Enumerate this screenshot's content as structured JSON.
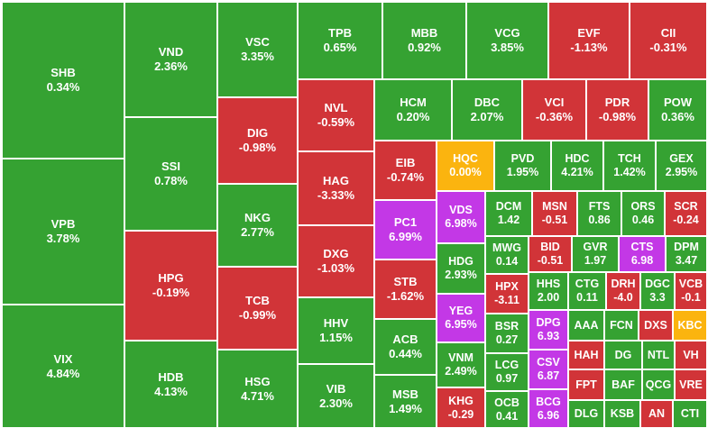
{
  "colors": {
    "up": "#35a232",
    "down": "#d13438",
    "ref": "#fbb40f",
    "ceiling": "#c338e6"
  },
  "tiles": {
    "SHB": {
      "symbol": "SHB",
      "change": "0.34%",
      "status": "up"
    },
    "VPB": {
      "symbol": "VPB",
      "change": "3.78%",
      "status": "up"
    },
    "VIX": {
      "symbol": "VIX",
      "change": "4.84%",
      "status": "up"
    },
    "VND": {
      "symbol": "VND",
      "change": "2.36%",
      "status": "up"
    },
    "SSI": {
      "symbol": "SSI",
      "change": "0.78%",
      "status": "up"
    },
    "HPG": {
      "symbol": "HPG",
      "change": "-0.19%",
      "status": "down"
    },
    "HDB": {
      "symbol": "HDB",
      "change": "4.13%",
      "status": "up"
    },
    "VSC": {
      "symbol": "VSC",
      "change": "3.35%",
      "status": "up"
    },
    "DIG": {
      "symbol": "DIG",
      "change": "-0.98%",
      "status": "down"
    },
    "NKG": {
      "symbol": "NKG",
      "change": "2.77%",
      "status": "up"
    },
    "TCB": {
      "symbol": "TCB",
      "change": "-0.99%",
      "status": "down"
    },
    "HSG": {
      "symbol": "HSG",
      "change": "4.71%",
      "status": "up"
    },
    "TPB": {
      "symbol": "TPB",
      "change": "0.65%",
      "status": "up"
    },
    "MBB": {
      "symbol": "MBB",
      "change": "0.92%",
      "status": "up"
    },
    "VCG": {
      "symbol": "VCG",
      "change": "3.85%",
      "status": "up"
    },
    "EVF": {
      "symbol": "EVF",
      "change": "-1.13%",
      "status": "down"
    },
    "CII": {
      "symbol": "CII",
      "change": "-0.31%",
      "status": "down"
    },
    "NVL": {
      "symbol": "NVL",
      "change": "-0.59%",
      "status": "down"
    },
    "HAG": {
      "symbol": "HAG",
      "change": "-3.33%",
      "status": "down"
    },
    "DXG": {
      "symbol": "DXG",
      "change": "-1.03%",
      "status": "down"
    },
    "HHV": {
      "symbol": "HHV",
      "change": "1.15%",
      "status": "up"
    },
    "VIB": {
      "symbol": "VIB",
      "change": "2.30%",
      "status": "up"
    },
    "HCM": {
      "symbol": "HCM",
      "change": "0.20%",
      "status": "up"
    },
    "DBC": {
      "symbol": "DBC",
      "change": "2.07%",
      "status": "up"
    },
    "VCI": {
      "symbol": "VCI",
      "change": "-0.36%",
      "status": "down"
    },
    "PDR": {
      "symbol": "PDR",
      "change": "-0.98%",
      "status": "down"
    },
    "POW": {
      "symbol": "POW",
      "change": "0.36%",
      "status": "up"
    },
    "EIB": {
      "symbol": "EIB",
      "change": "-0.74%",
      "status": "down"
    },
    "HQC": {
      "symbol": "HQC",
      "change": "0.00%",
      "status": "ref"
    },
    "PVD": {
      "symbol": "PVD",
      "change": "1.95%",
      "status": "up"
    },
    "HDC": {
      "symbol": "HDC",
      "change": "4.21%",
      "status": "up"
    },
    "TCH": {
      "symbol": "TCH",
      "change": "1.42%",
      "status": "up"
    },
    "GEX": {
      "symbol": "GEX",
      "change": "2.95%",
      "status": "up"
    },
    "PC1": {
      "symbol": "PC1",
      "change": "6.99%",
      "status": "ceiling"
    },
    "VDS": {
      "symbol": "VDS",
      "change": "6.98%",
      "status": "ceiling"
    },
    "DCM": {
      "symbol": "DCM",
      "change": "1.42",
      "status": "up"
    },
    "MSN": {
      "symbol": "MSN",
      "change": "-0.51",
      "status": "down"
    },
    "FTS": {
      "symbol": "FTS",
      "change": "0.86",
      "status": "up"
    },
    "ORS": {
      "symbol": "ORS",
      "change": "0.46",
      "status": "up"
    },
    "SCR": {
      "symbol": "SCR",
      "change": "-0.24",
      "status": "down"
    },
    "STB": {
      "symbol": "STB",
      "change": "-1.62%",
      "status": "down"
    },
    "HDG": {
      "symbol": "HDG",
      "change": "2.93%",
      "status": "up"
    },
    "MWG": {
      "symbol": "MWG",
      "change": "0.14",
      "status": "up"
    },
    "BID": {
      "symbol": "BID",
      "change": "-0.51",
      "status": "down"
    },
    "GVR": {
      "symbol": "GVR",
      "change": "1.97",
      "status": "up"
    },
    "CTS": {
      "symbol": "CTS",
      "change": "6.98",
      "status": "ceiling"
    },
    "DPM": {
      "symbol": "DPM",
      "change": "3.47",
      "status": "up"
    },
    "HPX": {
      "symbol": "HPX",
      "change": "-3.11",
      "status": "down"
    },
    "HHS": {
      "symbol": "HHS",
      "change": "2.00",
      "status": "up"
    },
    "CTG": {
      "symbol": "CTG",
      "change": "0.11",
      "status": "up"
    },
    "DRH": {
      "symbol": "DRH",
      "change": "-4.0",
      "status": "down"
    },
    "DGC": {
      "symbol": "DGC",
      "change": "3.3",
      "status": "up"
    },
    "VCB": {
      "symbol": "VCB",
      "change": "-0.1",
      "status": "down"
    },
    "ACB": {
      "symbol": "ACB",
      "change": "0.44%",
      "status": "up"
    },
    "YEG": {
      "symbol": "YEG",
      "change": "6.95%",
      "status": "ceiling"
    },
    "BSR": {
      "symbol": "BSR",
      "change": "0.27",
      "status": "up"
    },
    "DPG": {
      "symbol": "DPG",
      "change": "6.93",
      "status": "ceiling"
    },
    "AAA": {
      "symbol": "AAA",
      "change": "",
      "status": "up"
    },
    "FCN": {
      "symbol": "FCN",
      "change": "",
      "status": "up"
    },
    "DXS": {
      "symbol": "DXS",
      "change": "",
      "status": "down"
    },
    "KBC": {
      "symbol": "KBC",
      "change": "",
      "status": "ref"
    },
    "VNM": {
      "symbol": "VNM",
      "change": "2.49%",
      "status": "up"
    },
    "LCG": {
      "symbol": "LCG",
      "change": "0.97",
      "status": "up"
    },
    "CSV": {
      "symbol": "CSV",
      "change": "6.87",
      "status": "ceiling"
    },
    "HAH": {
      "symbol": "HAH",
      "change": "",
      "status": "down"
    },
    "DG": {
      "symbol": "DG",
      "change": "",
      "status": "up"
    },
    "NTL": {
      "symbol": "NTL",
      "change": "",
      "status": "up"
    },
    "VH": {
      "symbol": "VH",
      "change": "",
      "status": "down"
    },
    "FPT": {
      "symbol": "FPT",
      "change": "",
      "status": "down"
    },
    "BAF": {
      "symbol": "BAF",
      "change": "",
      "status": "up"
    },
    "QCG": {
      "symbol": "QCG",
      "change": "",
      "status": "up"
    },
    "VRE": {
      "symbol": "VRE",
      "change": "",
      "status": "down"
    },
    "MSB": {
      "symbol": "MSB",
      "change": "1.49%",
      "status": "up"
    },
    "KHG": {
      "symbol": "KHG",
      "change": "-0.29",
      "status": "down"
    },
    "OCB": {
      "symbol": "OCB",
      "change": "0.41",
      "status": "up"
    },
    "BCG": {
      "symbol": "BCG",
      "change": "6.96",
      "status": "ceiling"
    },
    "DLG": {
      "symbol": "DLG",
      "change": "",
      "status": "up"
    },
    "KSB": {
      "symbol": "KSB",
      "change": "",
      "status": "up"
    },
    "AN": {
      "symbol": "AN",
      "change": "",
      "status": "down"
    },
    "CTI": {
      "symbol": "CTI",
      "change": "",
      "status": "up"
    }
  }
}
